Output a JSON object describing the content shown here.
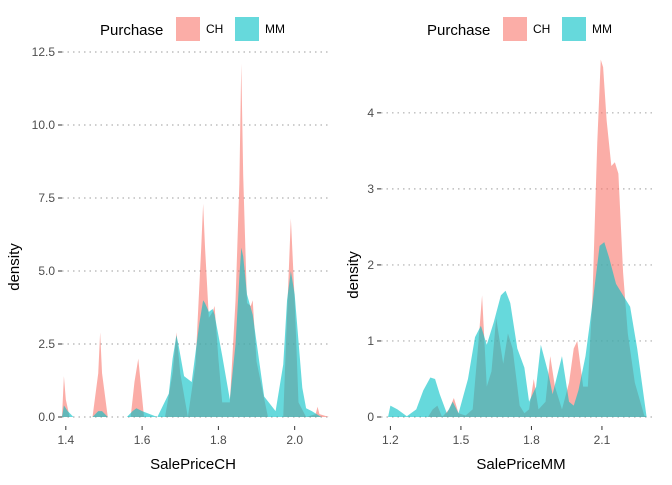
{
  "legend": {
    "title": "Purchase",
    "items": [
      {
        "label": "CH",
        "color": "#F8766D"
      },
      {
        "label": "MM",
        "color": "#00BFC4"
      }
    ]
  },
  "chart_data": [
    {
      "type": "area",
      "xlabel": "SalePriceCH",
      "ylabel": "density",
      "xlim": [
        1.39,
        2.09
      ],
      "ylim": [
        0,
        12.5
      ],
      "xticks": [
        1.4,
        1.6,
        1.8,
        2.0
      ],
      "xtick_labels": [
        "1.4",
        "1.6",
        "1.8",
        "2.0"
      ],
      "yticks": [
        0,
        2.5,
        5,
        7.5,
        10,
        12.5
      ],
      "ytick_labels": [
        "0.0",
        "2.5",
        "5.0",
        "7.5",
        "10.0",
        "12.5"
      ],
      "grid": true,
      "legend_position": "top",
      "series": [
        {
          "name": "CH",
          "x": [
            1.39,
            1.395,
            1.4,
            1.41,
            1.47,
            1.485,
            1.49,
            1.495,
            1.51,
            1.57,
            1.58,
            1.59,
            1.605,
            1.66,
            1.68,
            1.69,
            1.7,
            1.72,
            1.74,
            1.755,
            1.76,
            1.765,
            1.775,
            1.785,
            1.79,
            1.8,
            1.81,
            1.83,
            1.845,
            1.855,
            1.86,
            1.865,
            1.875,
            1.885,
            1.89,
            1.9,
            1.93,
            1.97,
            1.98,
            1.99,
            2.0,
            2.01,
            2.03,
            2.055,
            2.06,
            2.065,
            2.09
          ],
          "values": [
            0,
            1.4,
            0.6,
            0,
            0,
            1.5,
            2.9,
            1.5,
            0,
            0,
            1.2,
            2.0,
            0,
            0,
            1.5,
            2.9,
            1.5,
            0,
            1.8,
            5.8,
            7.3,
            5.8,
            3.4,
            3.6,
            3.8,
            2.0,
            0.5,
            0.5,
            4.0,
            8.0,
            12.1,
            8.3,
            3.9,
            3.8,
            4.0,
            1.9,
            0,
            0,
            3.5,
            6.8,
            4.0,
            0.5,
            0,
            0.1,
            0.35,
            0.1,
            0
          ]
        },
        {
          "name": "MM",
          "x": [
            1.39,
            1.395,
            1.405,
            1.42,
            1.47,
            1.485,
            1.495,
            1.51,
            1.56,
            1.575,
            1.585,
            1.6,
            1.64,
            1.67,
            1.68,
            1.69,
            1.695,
            1.71,
            1.73,
            1.75,
            1.76,
            1.765,
            1.775,
            1.785,
            1.79,
            1.81,
            1.83,
            1.845,
            1.855,
            1.86,
            1.865,
            1.875,
            1.89,
            1.92,
            1.95,
            1.97,
            1.98,
            1.99,
            2.0,
            2.02,
            2.03,
            2.045,
            2.07,
            2.09
          ],
          "values": [
            0,
            0.4,
            0.2,
            0,
            0,
            0.2,
            0.2,
            0,
            0,
            0.2,
            0.3,
            0.2,
            0,
            0.8,
            2.0,
            2.8,
            2.5,
            1.4,
            1.2,
            3.2,
            4.0,
            3.9,
            3.6,
            3.7,
            3.5,
            2.1,
            0.6,
            2.5,
            4.8,
            5.8,
            5.5,
            4.2,
            3.5,
            0.7,
            0.2,
            1.8,
            4.0,
            5.0,
            4.2,
            1.0,
            0.3,
            0.2,
            0,
            0
          ]
        }
      ]
    },
    {
      "type": "area",
      "xlabel": "SalePriceMM",
      "ylabel": "density",
      "xlim": [
        1.16,
        2.33
      ],
      "ylim": [
        0,
        4.8
      ],
      "xticks": [
        1.2,
        1.5,
        1.8,
        2.1
      ],
      "xtick_labels": [
        "1.2",
        "1.5",
        "1.8",
        "2.1"
      ],
      "yticks": [
        0,
        1,
        2,
        3,
        4
      ],
      "ytick_labels": [
        "0",
        "1",
        "2",
        "3",
        "4"
      ],
      "grid": true,
      "legend_position": "top",
      "series": [
        {
          "name": "CH",
          "x": [
            1.36,
            1.38,
            1.4,
            1.42,
            1.45,
            1.47,
            1.49,
            1.52,
            1.55,
            1.575,
            1.59,
            1.61,
            1.63,
            1.65,
            1.68,
            1.7,
            1.72,
            1.75,
            1.77,
            1.79,
            1.81,
            1.83,
            1.86,
            1.88,
            1.9,
            1.93,
            1.96,
            1.98,
            1.995,
            2.02,
            2.04,
            2.06,
            2.08,
            2.095,
            2.105,
            2.12,
            2.14,
            2.155,
            2.17,
            2.19,
            2.21,
            2.24,
            2.28,
            2.29
          ],
          "values": [
            0,
            0.1,
            0.15,
            0,
            0.1,
            0.25,
            0.05,
            0.02,
            0.1,
            1.0,
            1.6,
            0.4,
            0.6,
            1.3,
            0.7,
            1.1,
            0.9,
            0.15,
            0.05,
            0.1,
            0.5,
            0.1,
            0.2,
            0.8,
            0.4,
            0.1,
            0.45,
            0.9,
            1.0,
            0.4,
            0.4,
            1.6,
            3.6,
            4.7,
            4.6,
            3.9,
            3.3,
            3.35,
            3.2,
            1.9,
            1.1,
            0.45,
            0.02,
            0
          ]
        },
        {
          "name": "MM",
          "x": [
            1.19,
            1.2,
            1.23,
            1.27,
            1.31,
            1.34,
            1.37,
            1.39,
            1.41,
            1.44,
            1.465,
            1.49,
            1.53,
            1.56,
            1.585,
            1.61,
            1.64,
            1.67,
            1.69,
            1.71,
            1.74,
            1.77,
            1.79,
            1.82,
            1.84,
            1.87,
            1.89,
            1.91,
            1.93,
            1.96,
            1.98,
            2.0,
            2.03,
            2.06,
            2.09,
            2.11,
            2.13,
            2.16,
            2.19,
            2.22,
            2.25,
            2.29
          ],
          "values": [
            0,
            0.15,
            0.1,
            0.01,
            0.1,
            0.35,
            0.52,
            0.5,
            0.3,
            0.05,
            0.2,
            0.05,
            0.5,
            1.05,
            1.2,
            0.95,
            1.25,
            1.6,
            1.66,
            1.5,
            0.9,
            0.65,
            0.2,
            0.4,
            0.95,
            0.6,
            0.3,
            0.55,
            0.8,
            0.2,
            0.15,
            0.35,
            0.8,
            1.5,
            2.25,
            2.3,
            2.1,
            1.75,
            1.6,
            1.45,
            0.9,
            0
          ]
        }
      ]
    }
  ]
}
